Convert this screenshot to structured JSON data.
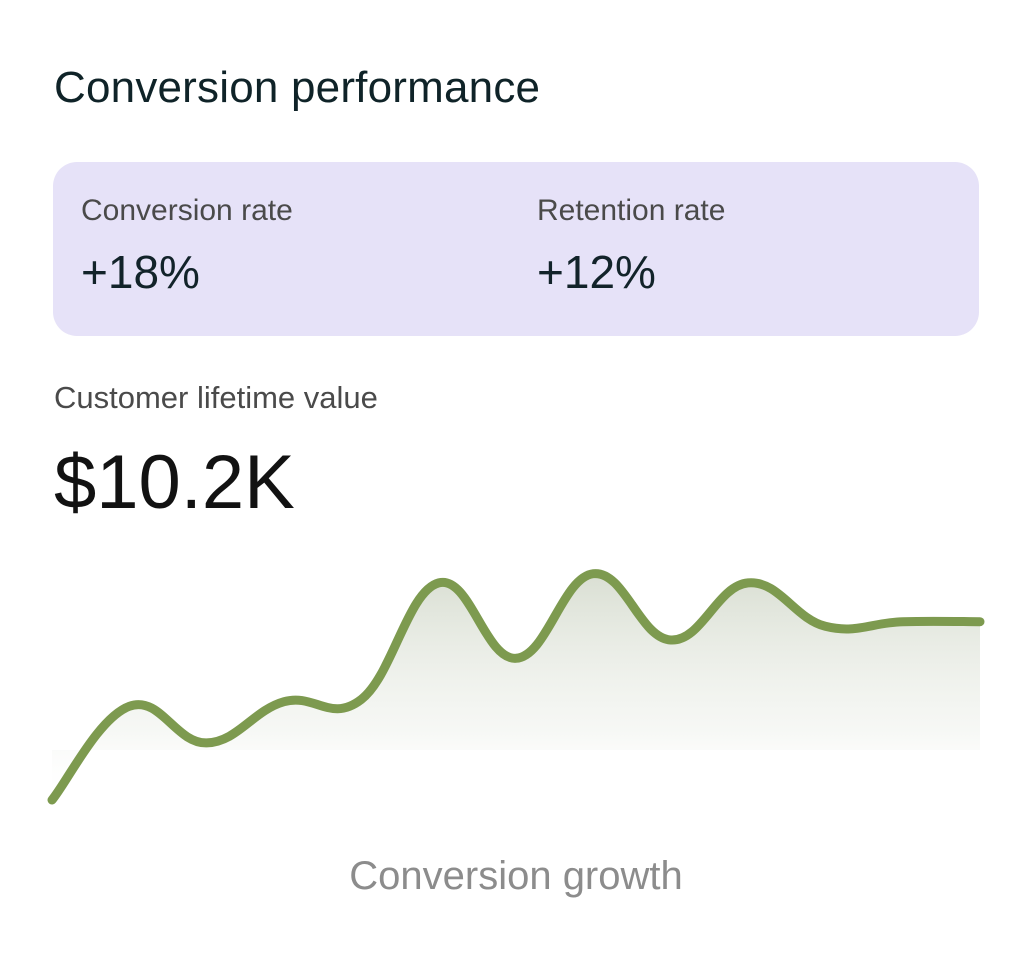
{
  "header": {
    "title": "Conversion performance"
  },
  "stats": [
    {
      "label": "Conversion rate",
      "value": "+18%"
    },
    {
      "label": "Retention rate",
      "value": "+12%"
    }
  ],
  "metric": {
    "label": "Customer lifetime value",
    "value": "$10.2K"
  },
  "chart_data": {
    "type": "area",
    "title": "",
    "caption": "Conversion growth",
    "xlabel": "",
    "ylabel": "",
    "x": [
      0,
      1,
      2,
      3,
      4,
      5,
      6,
      7,
      8,
      9,
      10,
      11,
      12
    ],
    "series": [
      {
        "values": [
          0.0,
          0.41,
          0.25,
          0.43,
          0.44,
          0.95,
          0.62,
          0.99,
          0.7,
          0.95,
          0.76,
          0.78,
          0.78
        ]
      }
    ],
    "ylim": [
      0,
      1.05
    ],
    "grid": false,
    "line_color": "#7d9a4f",
    "fill_color": "#d8ddd2"
  }
}
